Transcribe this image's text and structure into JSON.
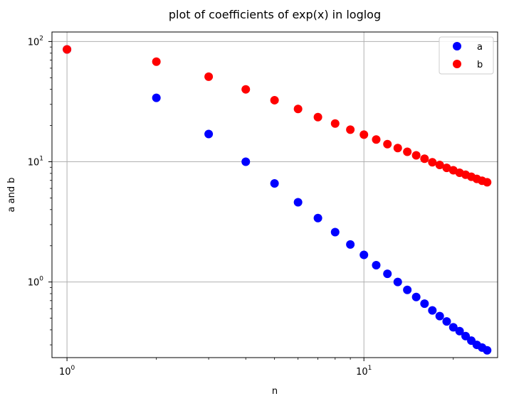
{
  "chart_data": {
    "type": "scatter",
    "title": "plot of coefficients of exp(x) in loglog",
    "xlabel": "n",
    "ylabel": "a and b",
    "xscale": "log",
    "yscale": "log",
    "xlim": [
      0.89,
      28.2
    ],
    "ylim": [
      0.235,
      120
    ],
    "grid": true,
    "legend_position": "top-right",
    "x_ticks": [
      {
        "value": 1,
        "base": "10",
        "exp": "0"
      },
      {
        "value": 10,
        "base": "10",
        "exp": "1"
      }
    ],
    "y_ticks": [
      {
        "value": 1,
        "base": "10",
        "exp": "0"
      },
      {
        "value": 10,
        "base": "10",
        "exp": "1"
      },
      {
        "value": 100,
        "base": "10",
        "exp": "2"
      }
    ],
    "series": [
      {
        "name": "a",
        "color": "#0000ff",
        "x": [
          1,
          2,
          3,
          4,
          5,
          6,
          7,
          8,
          9,
          10,
          11,
          12,
          13,
          14,
          15,
          16,
          17,
          18,
          19,
          20,
          21,
          22,
          23,
          24,
          25,
          26
        ],
        "y": [
          86,
          34,
          17,
          10,
          6.6,
          4.6,
          3.4,
          2.6,
          2.05,
          1.68,
          1.38,
          1.17,
          1.0,
          0.86,
          0.75,
          0.66,
          0.58,
          0.52,
          0.47,
          0.42,
          0.39,
          0.355,
          0.325,
          0.3,
          0.285,
          0.27
        ]
      },
      {
        "name": "b",
        "color": "#ff0000",
        "x": [
          1,
          2,
          3,
          4,
          5,
          6,
          7,
          8,
          9,
          10,
          11,
          12,
          13,
          14,
          15,
          16,
          17,
          18,
          19,
          20,
          21,
          22,
          23,
          24,
          25,
          26
        ],
        "y": [
          86,
          68,
          51,
          40,
          32.5,
          27.5,
          23.5,
          20.8,
          18.5,
          16.8,
          15.3,
          14.0,
          13.0,
          12.1,
          11.3,
          10.6,
          9.9,
          9.4,
          8.9,
          8.5,
          8.1,
          7.8,
          7.5,
          7.2,
          6.95,
          6.75
        ]
      }
    ]
  }
}
